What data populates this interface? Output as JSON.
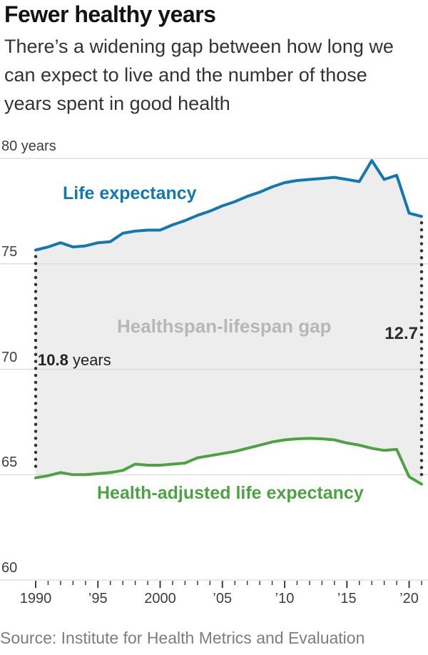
{
  "header": {
    "title": "Fewer healthy years",
    "subtitle": "There’s a widening gap between how long we can expect to live and the number of those years spent in good health"
  },
  "source": {
    "text": "Source: Institute for Health Metrics and Evaluation"
  },
  "colors": {
    "line_blue": "#1278b0",
    "line_green": "#4da344",
    "area_fill": "#ededed",
    "grid": "#d9d9d9",
    "dotted": "#333333",
    "gap_label_gray": "#b7b7b7",
    "axis_text": "#3d3d3d",
    "annotation_dark": "#222222",
    "source_text": "#7d7d7d"
  },
  "chart_data": {
    "type": "line",
    "title": "Fewer healthy years",
    "area_label": "Healthspan-lifespan gap",
    "grid": "horizontal",
    "legend_position": "inline-labels",
    "xlim": [
      1990,
      2021
    ],
    "ylim": [
      60,
      80
    ],
    "x": [
      1990,
      1991,
      1992,
      1993,
      1994,
      1995,
      1996,
      1997,
      1998,
      1999,
      2000,
      2001,
      2002,
      2003,
      2004,
      2005,
      2006,
      2007,
      2008,
      2009,
      2010,
      2011,
      2012,
      2013,
      2014,
      2015,
      2016,
      2017,
      2018,
      2019,
      2020,
      2021
    ],
    "series": [
      {
        "name": "Life expectancy",
        "color": "#1278b0",
        "values": [
          75.65,
          75.8,
          76.0,
          75.8,
          75.85,
          76.0,
          76.05,
          76.45,
          76.55,
          76.6,
          76.6,
          76.85,
          77.05,
          77.3,
          77.5,
          77.75,
          77.95,
          78.2,
          78.4,
          78.65,
          78.85,
          78.95,
          79.0,
          79.05,
          79.1,
          79.0,
          78.9,
          79.9,
          79.0,
          79.2,
          77.4,
          77.25
        ]
      },
      {
        "name": "Health-adjusted life expectancy",
        "color": "#4da344",
        "values": [
          64.85,
          64.95,
          65.1,
          65.0,
          65.0,
          65.05,
          65.1,
          65.2,
          65.5,
          65.45,
          65.45,
          65.5,
          65.55,
          65.8,
          65.9,
          66.0,
          66.1,
          66.25,
          66.4,
          66.55,
          66.65,
          66.7,
          66.72,
          66.7,
          66.65,
          66.5,
          66.4,
          66.25,
          66.15,
          66.2,
          64.9,
          64.55
        ]
      }
    ],
    "gap_start": {
      "year": 1990,
      "value_label": "10.8",
      "suffix": "years",
      "gap_years": 10.8
    },
    "gap_end": {
      "year": 2021,
      "value_label": "12.7",
      "gap_years": 12.7
    },
    "y_axis": {
      "ticks": [
        {
          "value": 80,
          "label": "80 years"
        },
        {
          "value": 75,
          "label": "75"
        },
        {
          "value": 70,
          "label": "70"
        },
        {
          "value": 65,
          "label": "65"
        },
        {
          "value": 60,
          "label": "60"
        }
      ]
    },
    "x_axis": {
      "tick_years_range": [
        1990,
        2021
      ],
      "major_interval": 5,
      "labels": [
        {
          "year": 1990,
          "label": "1990"
        },
        {
          "year": 1995,
          "label": "’95"
        },
        {
          "year": 2000,
          "label": "2000"
        },
        {
          "year": 2005,
          "label": "’05"
        },
        {
          "year": 2010,
          "label": "’10"
        },
        {
          "year": 2015,
          "label": "’15"
        },
        {
          "year": 2020,
          "label": "’20"
        }
      ]
    }
  }
}
